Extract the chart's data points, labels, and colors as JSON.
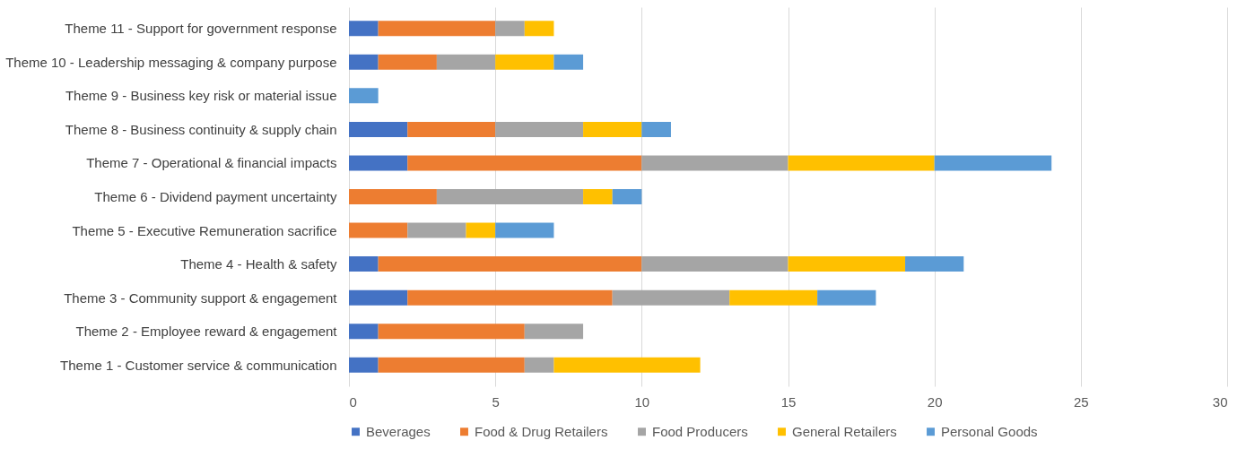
{
  "chart_data": {
    "type": "bar",
    "orientation": "horizontal",
    "stacked": true,
    "categories": [
      "Theme 11 - Support for government response",
      "Theme 10 - Leadership messaging & company purpose",
      "Theme 9 - Business key risk or material issue",
      "Theme 8 - Business continuity & supply chain",
      "Theme 7 - Operational & financial impacts",
      "Theme 6 - Dividend payment uncertainty",
      "Theme 5 - Executive Remuneration sacrifice",
      "Theme 4 - Health & safety",
      "Theme 3 - Community support & engagement",
      "Theme 2 - Employee reward & engagement",
      "Theme 1 - Customer service & communication"
    ],
    "series": [
      {
        "name": "Beverages",
        "color": "#4472c4",
        "values": [
          1,
          1,
          null,
          2,
          2,
          null,
          null,
          1,
          2,
          1,
          1
        ]
      },
      {
        "name": "Food & Drug Retailers",
        "color": "#ed7d31",
        "values": [
          4,
          2,
          null,
          3,
          8,
          3,
          2,
          9,
          7,
          5,
          5
        ]
      },
      {
        "name": "Food Producers",
        "color": "#a5a5a5",
        "values": [
          1,
          2,
          null,
          3,
          5,
          5,
          2,
          5,
          4,
          2,
          1
        ]
      },
      {
        "name": "General Retailers",
        "color": "#ffc000",
        "values": [
          1,
          2,
          null,
          2,
          5,
          1,
          1,
          4,
          3,
          null,
          5
        ]
      },
      {
        "name": "Personal Goods",
        "color": "#5b9bd5",
        "values": [
          null,
          1,
          1,
          1,
          4,
          1,
          2,
          2,
          2,
          null,
          null
        ]
      }
    ],
    "xlim": [
      0,
      30
    ],
    "xticks": [
      0,
      5,
      10,
      15,
      20,
      25,
      30
    ],
    "grid": "x",
    "legend": "bottom"
  }
}
